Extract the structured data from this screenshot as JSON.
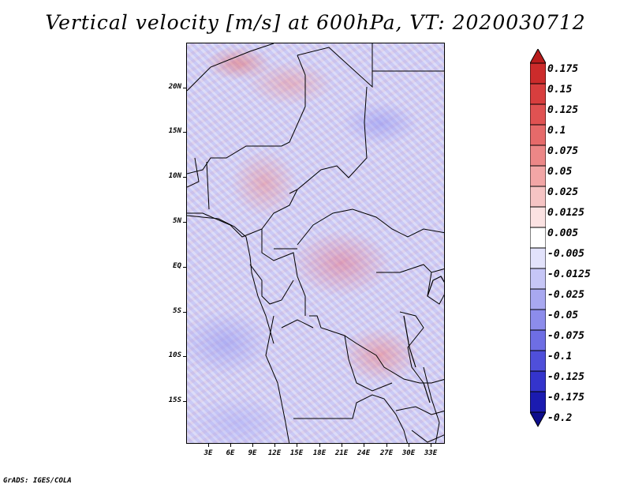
{
  "title": "Vertical velocity [m/s] at 600hPa, VT: 2020030712",
  "credit": "GrADS: IGES/COLA",
  "y_axis_labels": [
    "20N",
    "15N",
    "10N",
    "5N",
    "EQ",
    "5S",
    "10S",
    "15S"
  ],
  "x_axis_labels": [
    "3E",
    "6E",
    "9E",
    "12E",
    "15E",
    "18E",
    "21E",
    "24E",
    "27E",
    "30E",
    "33E"
  ],
  "colorbar": {
    "labels": [
      "0.175",
      "0.15",
      "0.125",
      "0.1",
      "0.075",
      "0.05",
      "0.025",
      "0.0125",
      "0.005",
      "-0.005",
      "-0.0125",
      "-0.025",
      "-0.05",
      "-0.075",
      "-0.1",
      "-0.125",
      "-0.175",
      "-0.2"
    ],
    "colors": [
      "#b81c1c",
      "#cc2b2b",
      "#d83e3e",
      "#e05252",
      "#e66a6a",
      "#ec8787",
      "#f2a6a6",
      "#f6c4c4",
      "#fbe2e2",
      "#ffffff",
      "#e2e2fb",
      "#c6c6f6",
      "#a8a8f0",
      "#8c8ceb",
      "#6e6ee4",
      "#4f4fda",
      "#3434cc",
      "#1b1bb0",
      "#0d0d8c"
    ]
  }
}
